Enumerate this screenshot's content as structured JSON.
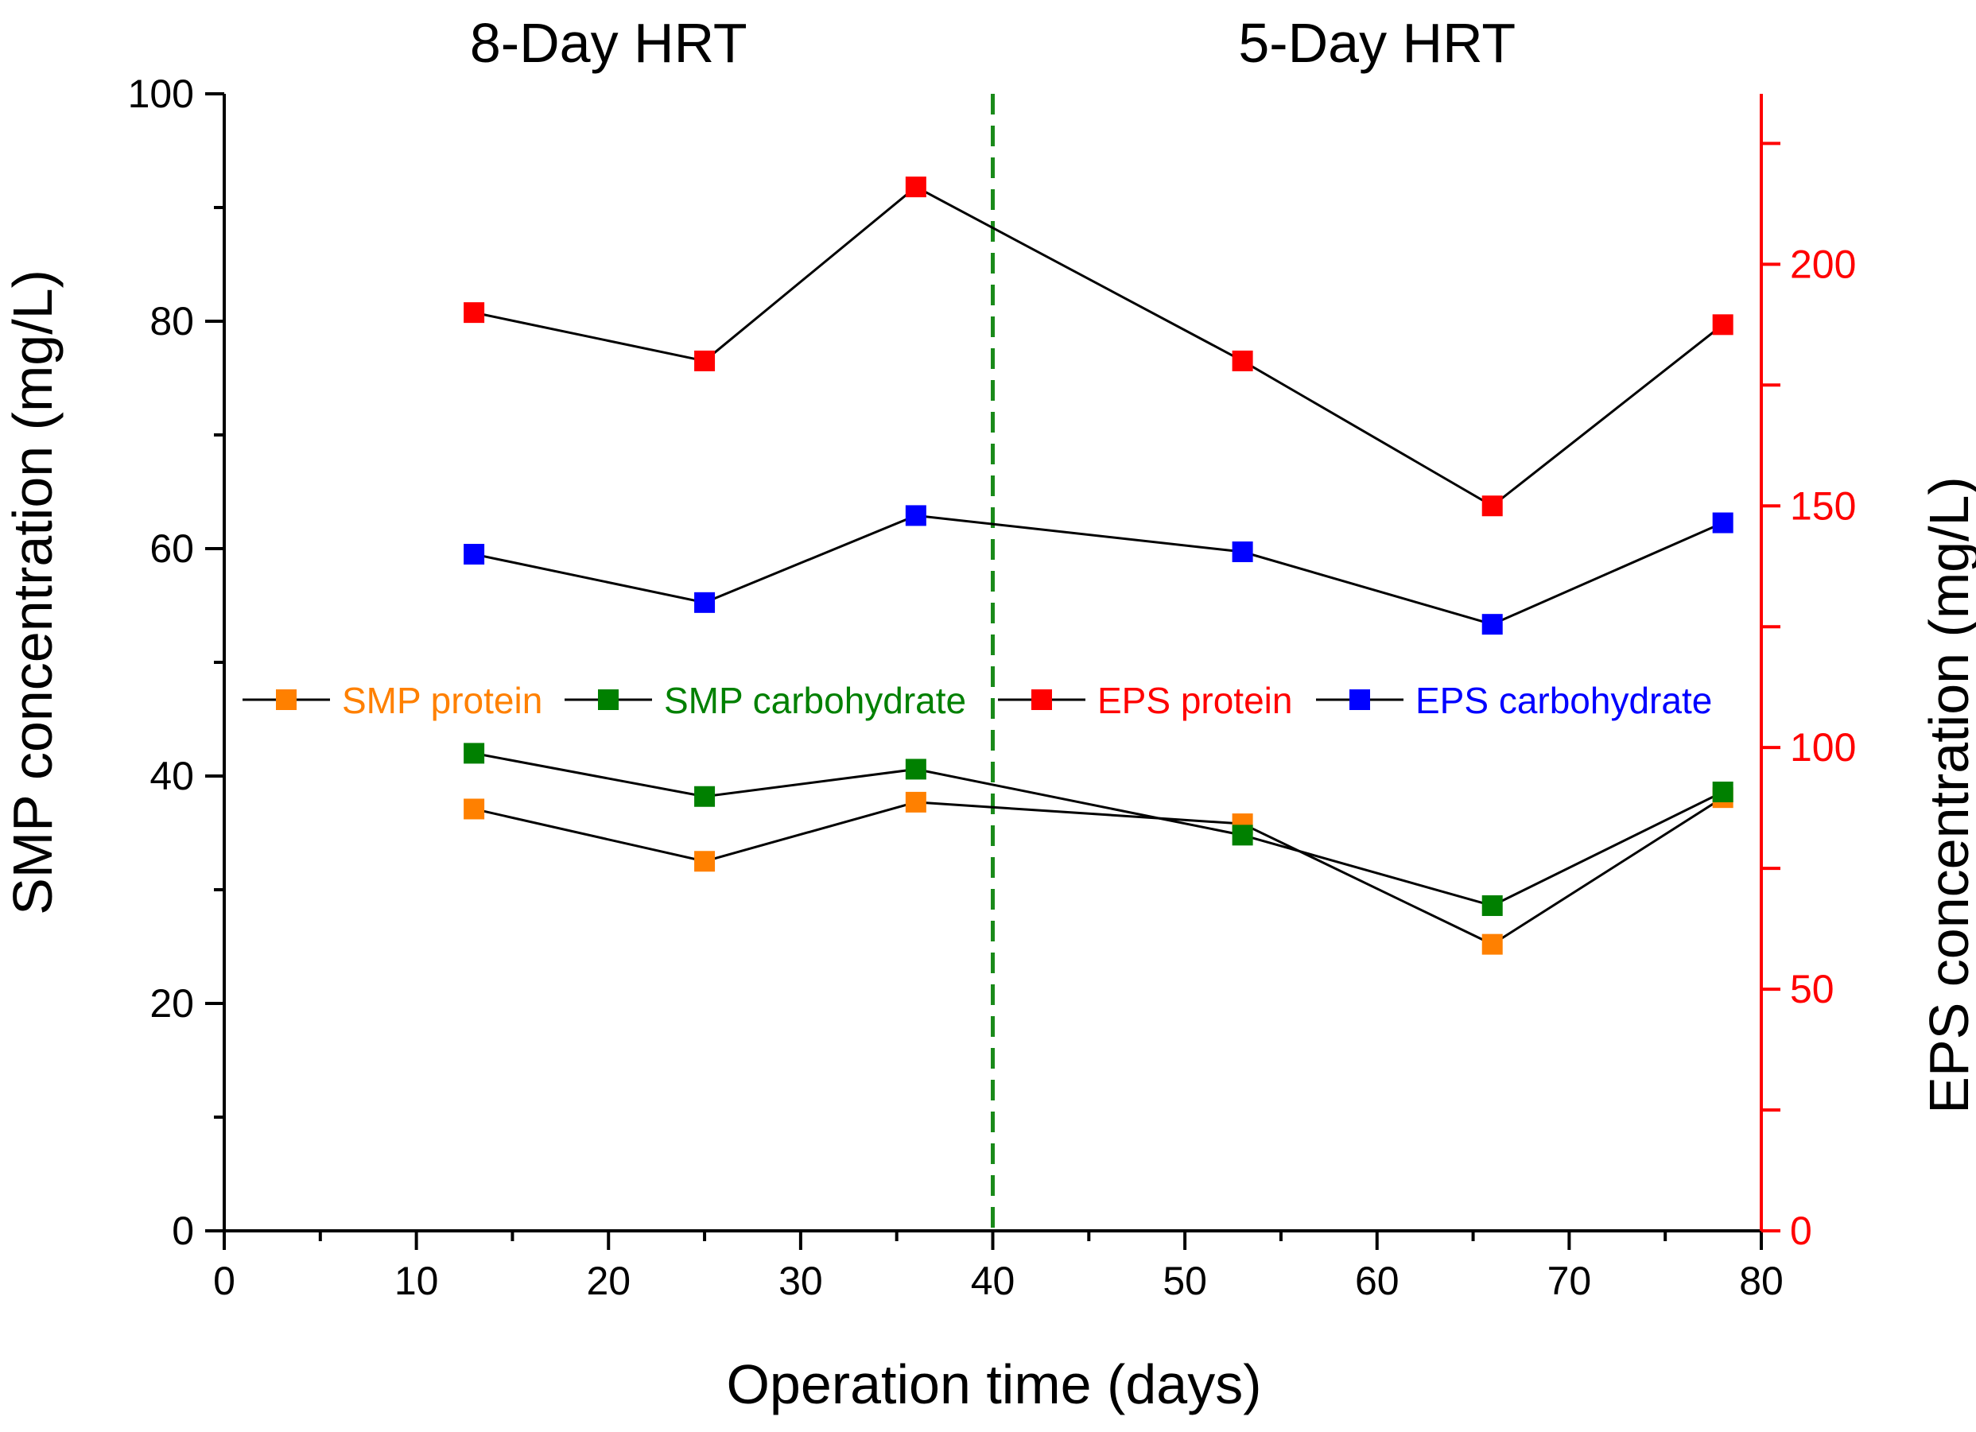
{
  "chart_data": {
    "type": "line",
    "xlabel": "Operation time (days)",
    "ylabel_left": "SMP concentration (mg/L)",
    "ylabel_right": "EPS concentration (mg/L)",
    "xlim": [
      0,
      80
    ],
    "ylim_left": [
      0,
      100
    ],
    "ylim_right": [
      0,
      230
    ],
    "x_ticks": [
      0,
      10,
      20,
      30,
      40,
      50,
      60,
      70,
      80
    ],
    "y_left_ticks": [
      0,
      20,
      40,
      60,
      80,
      100
    ],
    "y_right_ticks": [
      0,
      50,
      100,
      150,
      200
    ],
    "phases": [
      {
        "label": "8-Day HRT",
        "center_x": 20
      },
      {
        "label": "5-Day HRT",
        "center_x": 60
      }
    ],
    "divider_x": 40,
    "colors": {
      "divider": "#1a8a1a",
      "right_axis": "#ff0000",
      "line": "#000000"
    },
    "series": [
      {
        "name": "SMP protein",
        "axis": "left",
        "color": "#ff8000",
        "x": [
          13,
          25,
          36,
          53,
          66,
          78
        ],
        "values": [
          37.1,
          32.5,
          37.7,
          35.8,
          25.2,
          38.1
        ]
      },
      {
        "name": "SMP carbohydrate",
        "axis": "left",
        "color": "#008000",
        "x": [
          13,
          25,
          36,
          53,
          66,
          78
        ],
        "values": [
          42.0,
          38.2,
          40.6,
          34.8,
          28.6,
          38.6
        ]
      },
      {
        "name": "EPS protein",
        "axis": "right",
        "color": "#ff0000",
        "x": [
          13,
          25,
          36,
          53,
          66,
          78
        ],
        "values": [
          190,
          180,
          216,
          180,
          150,
          187.5
        ]
      },
      {
        "name": "EPS carbohydrate",
        "axis": "right",
        "color": "#0000ff",
        "x": [
          13,
          25,
          36,
          53,
          66,
          78
        ],
        "values": [
          140,
          130,
          148,
          140.5,
          125.5,
          146.5
        ]
      }
    ]
  }
}
